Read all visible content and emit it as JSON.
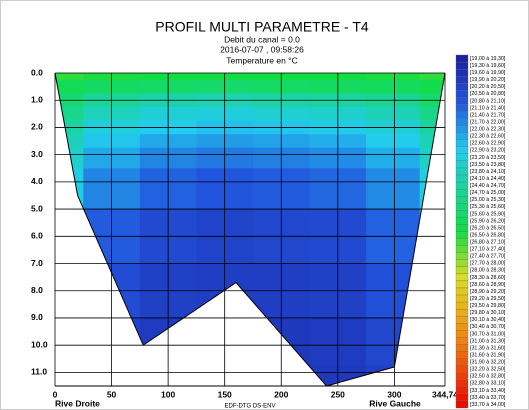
{
  "chart_data": {
    "type": "contour",
    "title": "PROFIL MULTI PARAMETRE - T4",
    "subtitle": [
      "Debit du canal = 0.0",
      "2016-07-07 , 09:58:26",
      "Temperature en °C"
    ],
    "xlabel_left": "Rive Droite",
    "xlabel_right": "Rive Gauche",
    "footer": "EDF-DTG DS-ENV",
    "xlim": [
      0,
      344.74
    ],
    "ylim": [
      0,
      11.5
    ],
    "xticks": [
      0,
      50,
      100,
      150,
      200,
      250,
      300,
      {
        "value": 344.74,
        "label": "344,74"
      }
    ],
    "yticks": [
      {
        "value": 0,
        "label": "0.0"
      },
      {
        "value": 1,
        "label": "1.0"
      },
      {
        "value": 2,
        "label": "2.0"
      },
      {
        "value": 3,
        "label": "3.0"
      },
      {
        "value": 4,
        "label": "4.0"
      },
      {
        "value": 5,
        "label": "5.0"
      },
      {
        "value": 6,
        "label": "6.0"
      },
      {
        "value": 7,
        "label": "7.0"
      },
      {
        "value": 8,
        "label": "8.0"
      },
      {
        "value": 9,
        "label": "9.0"
      },
      {
        "value": 10,
        "label": "10.0"
      },
      {
        "value": 11,
        "label": "11.0"
      }
    ],
    "grid": true,
    "bed": {
      "x": [
        0,
        20,
        78,
        160,
        240,
        300,
        344.74
      ],
      "depth": [
        0,
        4.5,
        10,
        7.7,
        11.5,
        10.8,
        0
      ]
    },
    "x": [
      0,
      50,
      100,
      150,
      200,
      250,
      300,
      344.74
    ],
    "depth": [
      0,
      0.5,
      1,
      1.5,
      2,
      2.5,
      3,
      4,
      6,
      8,
      10,
      11.5
    ],
    "z": [
      [
        26.8,
        26.6,
        26.5,
        26.5,
        26.5,
        26.5,
        26.6,
        26.8
      ],
      [
        26.2,
        25.9,
        25.8,
        25.7,
        25.8,
        25.9,
        26.0,
        26.3
      ],
      [
        25.6,
        24.8,
        24.4,
        24.3,
        24.5,
        24.6,
        24.9,
        25.7
      ],
      [
        25.0,
        24.0,
        23.5,
        23.4,
        23.6,
        23.7,
        24.1,
        25.1
      ],
      [
        24.5,
        23.4,
        23.0,
        22.8,
        22.9,
        23.1,
        23.5,
        24.6
      ],
      [
        24.1,
        22.9,
        22.4,
        22.2,
        22.3,
        22.5,
        23.0,
        24.2
      ],
      [
        23.7,
        22.4,
        21.8,
        21.6,
        21.7,
        21.9,
        22.5,
        23.8
      ],
      [
        23.2,
        21.8,
        21.2,
        21.0,
        21.1,
        21.3,
        21.9,
        23.3
      ],
      [
        22.5,
        21.1,
        20.6,
        20.4,
        20.5,
        20.6,
        21.2,
        22.6
      ],
      [
        22.0,
        20.7,
        20.3,
        20.2,
        20.2,
        20.3,
        20.8,
        22.1
      ],
      [
        21.6,
        20.4,
        20.1,
        20.0,
        20.0,
        20.1,
        20.5,
        21.7
      ],
      [
        21.3,
        20.2,
        20.0,
        19.9,
        19.9,
        20.0,
        20.3,
        21.4
      ]
    ],
    "colorscale": [
      [
        19,
        "#1c1c9c"
      ],
      [
        21,
        "#2255dd"
      ],
      [
        23,
        "#22ccee"
      ],
      [
        26.5,
        "#11dd44"
      ],
      [
        28.5,
        "#dddd22"
      ],
      [
        31,
        "#ee8811"
      ],
      [
        34,
        "#ee0000"
      ]
    ],
    "legend": [
      "[19,00 à 19,30]",
      "[19,30 à 19,60]",
      "[19,60 à 19,90]",
      "[19,90 à 20,20]",
      "[20,20 à 20,50]",
      "[20,50 à 20,80]",
      "[20,80 à 21,10]",
      "[21,10 à 21,40]",
      "[21,40 à 21,70]",
      "[21,70 à 22,00]",
      "[22,00 à 22,30]",
      "[22,30 à 22,60]",
      "[22,60 à 22,90]",
      "[22,90 à 23,20]",
      "[23,20 à 23,50]",
      "[23,50 à 23,80]",
      "[23,80 à 24,10]",
      "[24,10 à 24,40]",
      "[24,40 à 24,70]",
      "[24,70 à 25,00]",
      "[25,00 à 25,30]",
      "[25,30 à 25,60]",
      "[25,60 à 25,90]",
      "[25,90 à 26,20]",
      "[26,20 à 26,50]",
      "[26,50 à 26,80]",
      "[26,80 à 27,10]",
      "[27,10 à 27,40]",
      "[27,40 à 27,70]",
      "[27,70 à 28,00]",
      "[28,00 à 28,30]",
      "[28,30 à 28,60]",
      "[28,60 à 28,90]",
      "[28,90 à 29,20]",
      "[29,20 à 29,50]",
      "[29,50 à 29,80]",
      "[29,80 à 30,10]",
      "[30,10 à 30,40]",
      "[30,40 à 30,70]",
      "[30,70 à 31,00]",
      "[31,00 à 31,30]",
      "[31,30 à 31,60]",
      "[31,60 à 31,90]",
      "[31,90 à 32,20]",
      "[32,20 à 32,50]",
      "[32,50 à 32,80]",
      "[32,80 à 33,10]",
      "[33,10 à 33,40]",
      "[33,40 à 33,70]",
      "[33,70 à 34,00]"
    ]
  }
}
